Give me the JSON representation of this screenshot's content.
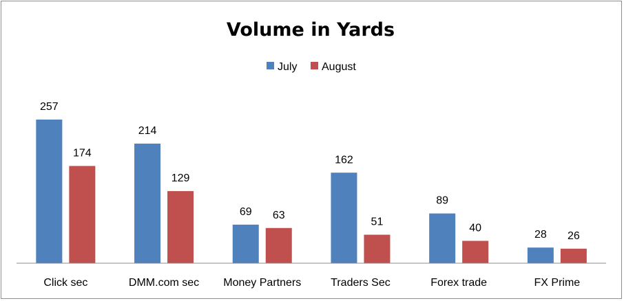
{
  "chart_data": {
    "type": "bar",
    "title": "Volume in Yards",
    "categories": [
      "Click sec",
      "DMM.com sec",
      "Money Partners",
      "Traders Sec",
      "Forex trade",
      "FX Prime"
    ],
    "series": [
      {
        "name": "July",
        "values": [
          257,
          214,
          69,
          162,
          89,
          28
        ]
      },
      {
        "name": "August",
        "values": [
          174,
          129,
          63,
          51,
          40,
          26
        ]
      }
    ],
    "colors": {
      "July": "#4f81bd",
      "August": "#c0504d"
    },
    "legend_position": "top-center",
    "grid": false,
    "ylim": [
      0,
      257
    ]
  }
}
